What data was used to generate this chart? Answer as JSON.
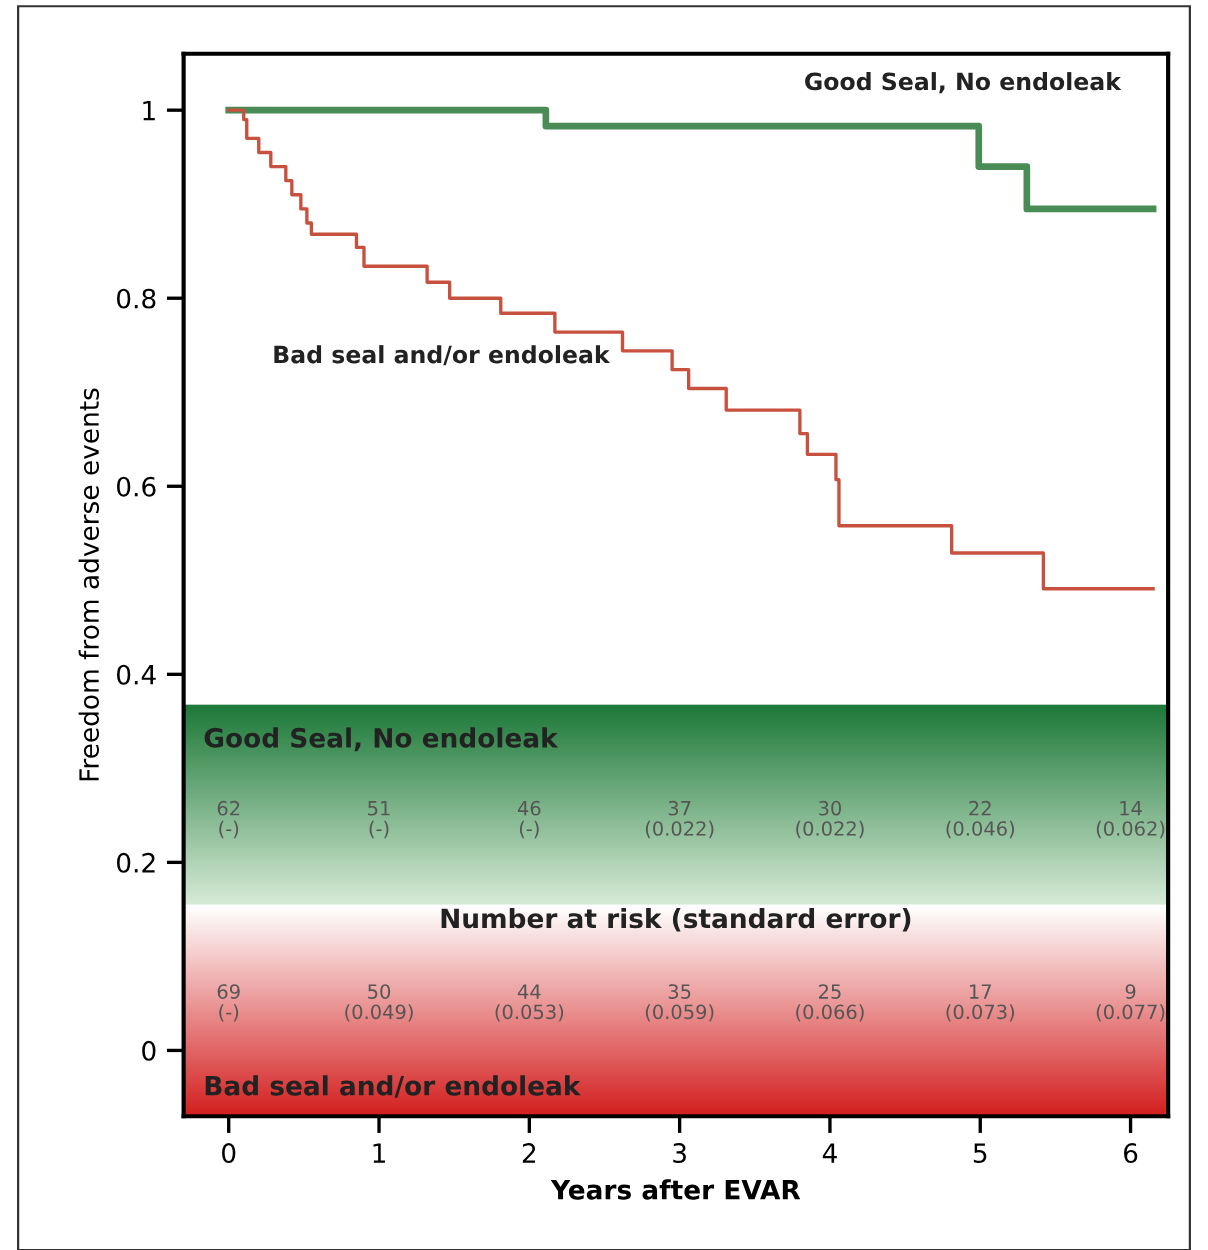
{
  "chart_data": {
    "type": "step",
    "xlabel": "Years after EVAR",
    "ylabel": "Freedom from adverse events",
    "xlim": [
      -0.3,
      6.25
    ],
    "ylim": [
      -0.07,
      1.06
    ],
    "xticks": [
      0,
      1,
      2,
      3,
      4,
      5,
      6
    ],
    "yticks": [
      0,
      0.2,
      0.4,
      0.6,
      0.8,
      1
    ],
    "grid": false,
    "legend": false,
    "marker": "none",
    "line_style": "solid",
    "series": [
      {
        "name": "Good Seal, No endoleak",
        "color": "#4a8c55",
        "x": [
          0,
          2.11,
          4.99,
          5.31,
          6.15
        ],
        "values": [
          1.0,
          0.983,
          0.94,
          0.895,
          0.895
        ]
      },
      {
        "name": "Bad seal and/or endoleak",
        "color": "#c8503e",
        "x": [
          0,
          0.1,
          0.12,
          0.2,
          0.28,
          0.38,
          0.42,
          0.48,
          0.52,
          0.55,
          0.85,
          0.9,
          1.32,
          1.47,
          1.81,
          2.17,
          2.62,
          2.95,
          3.06,
          3.31,
          3.8,
          3.85,
          4.04,
          4.06,
          4.81,
          5.42,
          6.15
        ],
        "values": [
          1.0,
          0.99,
          0.97,
          0.955,
          0.94,
          0.925,
          0.91,
          0.895,
          0.88,
          0.868,
          0.854,
          0.834,
          0.817,
          0.8,
          0.784,
          0.764,
          0.744,
          0.724,
          0.704,
          0.681,
          0.656,
          0.634,
          0.607,
          0.558,
          0.529,
          0.491,
          0.491
        ]
      }
    ],
    "annotations": [
      "Good Seal, No endoleak",
      "62\n(-)",
      "51\n(-)",
      "46\n(-)",
      "37\n(0.022)",
      "30\n(0.022)",
      "22\n(0.046)",
      "14\n(0.062)",
      "Number at risk (standard error)",
      "69\n(-)",
      "50\n(0.049)",
      "44\n(0.053)",
      "35\n(0.059)",
      "25\n(0.066)",
      "17\n(0.073)",
      "9\n(0.077)",
      "Bad seal and/or endoleak"
    ]
  }
}
